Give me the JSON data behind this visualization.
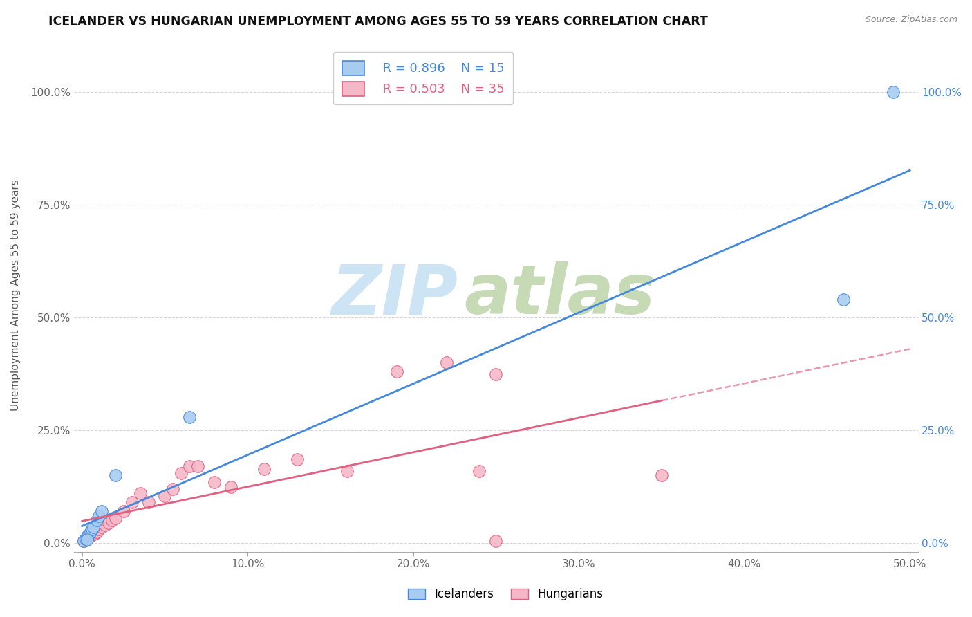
{
  "title": "ICELANDER VS HUNGARIAN UNEMPLOYMENT AMONG AGES 55 TO 59 YEARS CORRELATION CHART",
  "source": "Source: ZipAtlas.com",
  "xlabel": "",
  "ylabel": "Unemployment Among Ages 55 to 59 years",
  "xlim": [
    -0.005,
    0.505
  ],
  "ylim": [
    -0.02,
    1.12
  ],
  "xticks": [
    0.0,
    0.1,
    0.2,
    0.3,
    0.4,
    0.5
  ],
  "xticklabels": [
    "0.0%",
    "10.0%",
    "20.0%",
    "30.0%",
    "40.0%",
    "50.0%"
  ],
  "yticks": [
    0.0,
    0.25,
    0.5,
    0.75,
    1.0
  ],
  "yticklabels": [
    "0.0%",
    "25.0%",
    "50.0%",
    "75.0%",
    "100.0%"
  ],
  "blue_color": "#a8ccf0",
  "pink_color": "#f5b8c8",
  "blue_line_color": "#4488dd",
  "pink_line_color": "#e06080",
  "legend_r_blue": "R = 0.896",
  "legend_n_blue": "N = 15",
  "legend_r_pink": "R = 0.503",
  "legend_n_pink": "N = 35",
  "icelander_x": [
    0.001,
    0.002,
    0.003,
    0.004,
    0.005,
    0.006,
    0.007,
    0.009,
    0.01,
    0.012,
    0.02,
    0.065,
    0.46,
    0.49,
    0.003
  ],
  "icelander_y": [
    0.005,
    0.01,
    0.015,
    0.018,
    0.025,
    0.03,
    0.035,
    0.05,
    0.06,
    0.07,
    0.15,
    0.28,
    0.54,
    1.0,
    0.008
  ],
  "hungarian_x": [
    0.001,
    0.002,
    0.003,
    0.004,
    0.005,
    0.006,
    0.007,
    0.008,
    0.009,
    0.01,
    0.012,
    0.014,
    0.016,
    0.018,
    0.02,
    0.025,
    0.03,
    0.035,
    0.04,
    0.05,
    0.055,
    0.06,
    0.065,
    0.07,
    0.08,
    0.09,
    0.11,
    0.13,
    0.16,
    0.19,
    0.22,
    0.24,
    0.25,
    0.35,
    0.25
  ],
  "hungarian_y": [
    0.005,
    0.008,
    0.01,
    0.012,
    0.015,
    0.018,
    0.02,
    0.022,
    0.025,
    0.03,
    0.035,
    0.04,
    0.045,
    0.05,
    0.055,
    0.07,
    0.09,
    0.11,
    0.09,
    0.105,
    0.12,
    0.155,
    0.17,
    0.17,
    0.135,
    0.125,
    0.165,
    0.185,
    0.16,
    0.38,
    0.4,
    0.16,
    0.375,
    0.15,
    0.005
  ],
  "background_color": "#ffffff",
  "grid_color": "#cccccc",
  "watermark_zip_color": "#cde4f5",
  "watermark_atlas_color": "#c5dab5"
}
